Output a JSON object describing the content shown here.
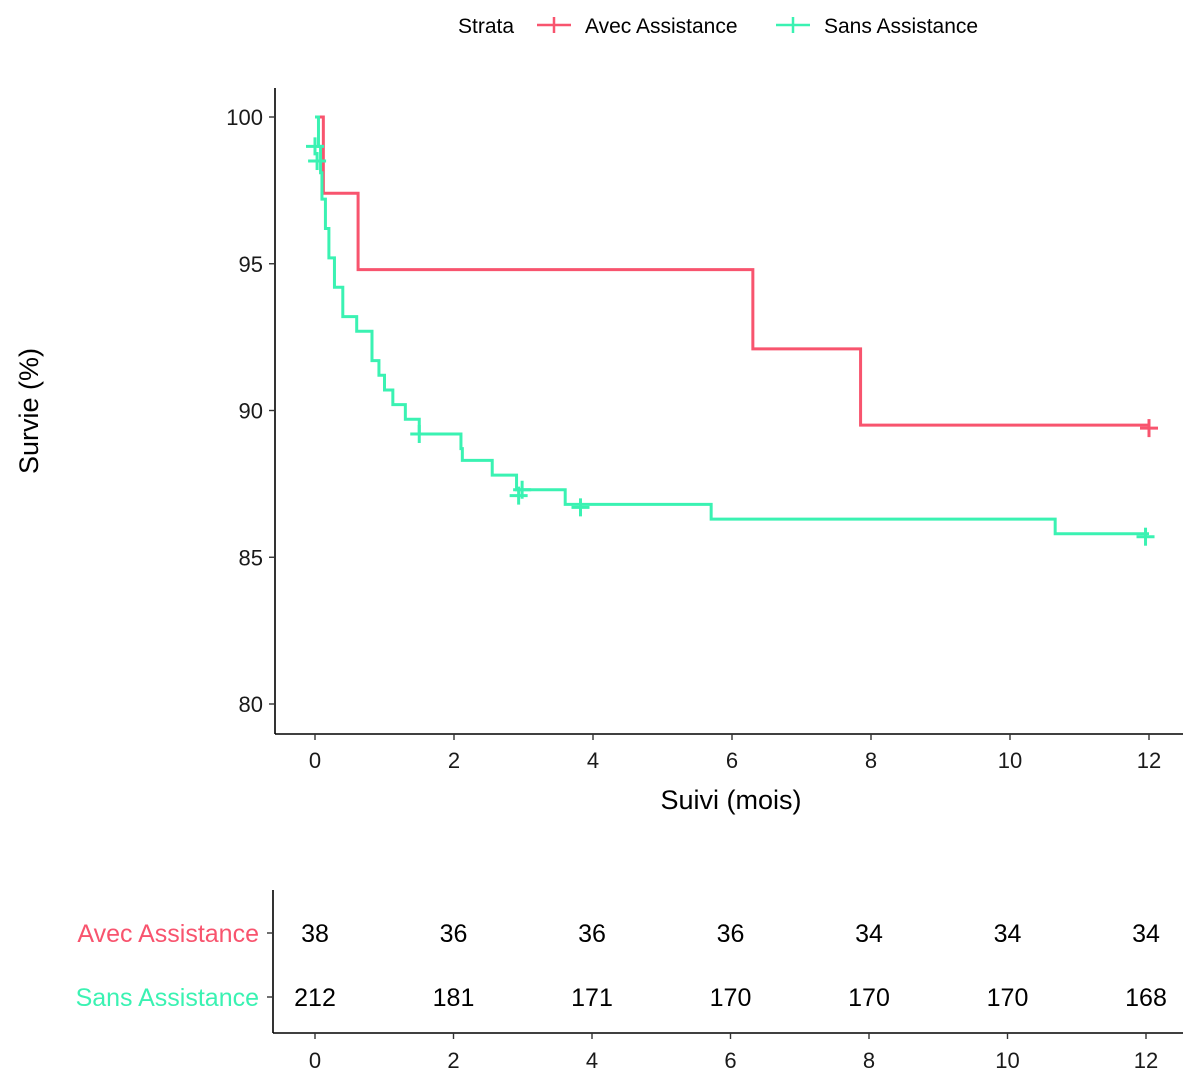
{
  "chart_data": {
    "type": "line",
    "subtype": "kaplan-meier step curve with risk table",
    "legend": {
      "title": "Strata",
      "placement": "top",
      "entries": [
        "Avec Assistance",
        "Sans Assistance"
      ]
    },
    "xlabel": "Suivi (mois)",
    "ylabel": "Survie (%)",
    "xlim": [
      -0.6,
      12.4
    ],
    "ylim": [
      79,
      101
    ],
    "x_ticks": [
      0,
      2,
      4,
      6,
      8,
      10,
      12
    ],
    "y_ticks": [
      80,
      85,
      90,
      95,
      100
    ],
    "grid": false,
    "series": [
      {
        "name": "Avec Assistance",
        "color": "#F8546E",
        "steps": [
          [
            0,
            100
          ],
          [
            0.12,
            97.4
          ],
          [
            0.62,
            94.8
          ],
          [
            6.3,
            92.1
          ],
          [
            7.85,
            89.5
          ],
          [
            12,
            89.5
          ]
        ],
        "censor_marks": [
          [
            12,
            89.4
          ]
        ]
      },
      {
        "name": "Sans Assistance",
        "color": "#3AF2B2",
        "steps": [
          [
            0,
            100
          ],
          [
            0.05,
            99.0
          ],
          [
            0.08,
            98.1
          ],
          [
            0.1,
            97.2
          ],
          [
            0.15,
            96.2
          ],
          [
            0.2,
            95.2
          ],
          [
            0.28,
            94.2
          ],
          [
            0.4,
            93.2
          ],
          [
            0.6,
            92.7
          ],
          [
            0.82,
            91.7
          ],
          [
            0.92,
            91.2
          ],
          [
            1.0,
            90.7
          ],
          [
            1.12,
            90.2
          ],
          [
            1.3,
            89.7
          ],
          [
            1.5,
            89.2
          ],
          [
            2.1,
            88.7
          ],
          [
            2.12,
            88.3
          ],
          [
            2.55,
            87.8
          ],
          [
            2.9,
            87.3
          ],
          [
            3.6,
            86.8
          ],
          [
            5.7,
            86.3
          ],
          [
            10.65,
            85.8
          ],
          [
            12,
            85.8
          ]
        ],
        "censor_marks": [
          [
            0,
            99.0
          ],
          [
            0.03,
            98.5
          ],
          [
            1.5,
            89.2
          ],
          [
            2.93,
            87.1
          ],
          [
            2.98,
            87.3
          ],
          [
            3.82,
            86.7
          ],
          [
            11.95,
            85.7
          ]
        ]
      }
    ],
    "risk_table": {
      "x_ticks": [
        0,
        2,
        4,
        6,
        8,
        10,
        12
      ],
      "rows": [
        {
          "label": "Avec Assistance",
          "color": "#F8546E",
          "values": [
            "38",
            "36",
            "36",
            "36",
            "34",
            "34",
            "34"
          ]
        },
        {
          "label": "Sans Assistance",
          "color": "#3AF2B2",
          "values": [
            "212",
            "181",
            "171",
            "170",
            "170",
            "170",
            "168"
          ]
        }
      ]
    }
  }
}
